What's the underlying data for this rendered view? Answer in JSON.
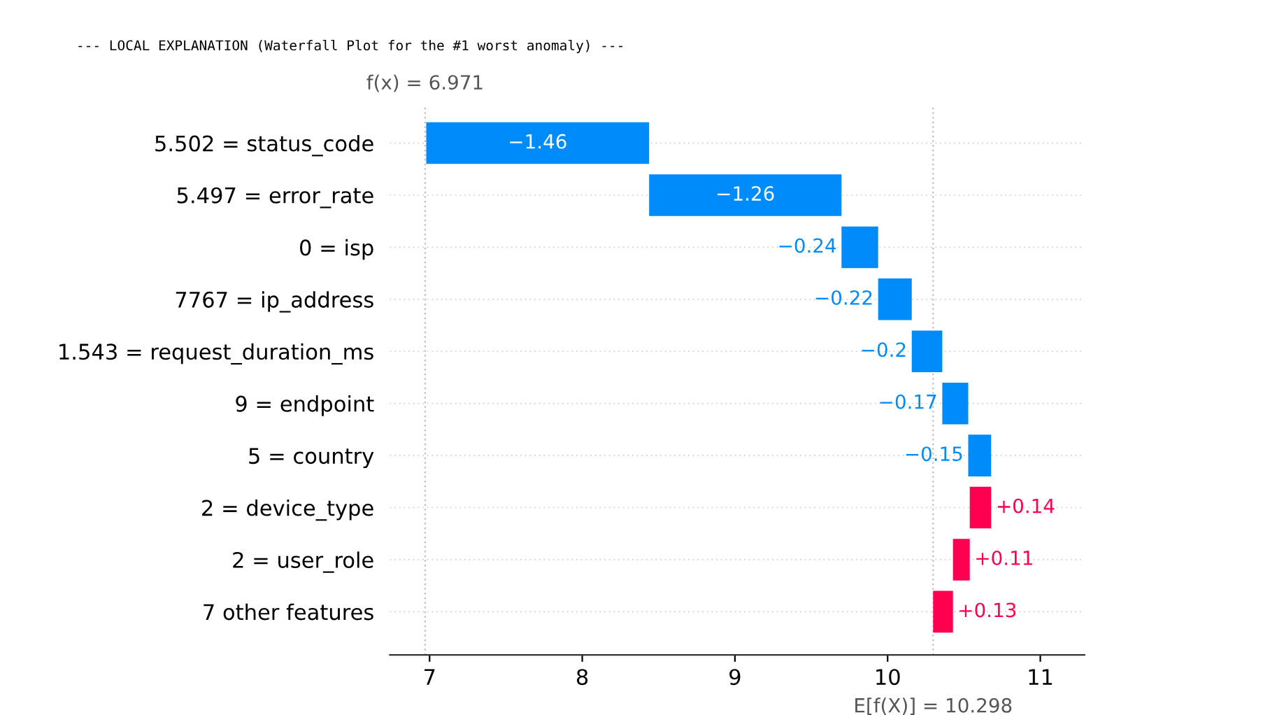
{
  "chart_data": {
    "type": "bar",
    "orientation": "horizontal",
    "title": "--- LOCAL EXPLANATION (Waterfall Plot for the #1 worst anomaly) ---",
    "categories": [
      "5.502 = status_code",
      "5.497 = error_rate",
      "0 = isp",
      "7767 = ip_address",
      "1.543 = request_duration_ms",
      "9 = endpoint",
      "5 = country",
      "2 = device_type",
      "2 = user_role",
      "7 other features"
    ],
    "values": [
      -1.46,
      -1.26,
      -0.24,
      -0.22,
      -0.2,
      -0.17,
      -0.15,
      0.14,
      0.11,
      0.13
    ],
    "base": [
      8.438,
      9.698,
      9.938,
      10.158,
      10.358,
      10.528,
      10.678,
      10.538,
      10.428,
      10.298
    ],
    "colors": [
      "#008bfb",
      "#008bfb",
      "#008bfb",
      "#008bfb",
      "#008bfb",
      "#008bfb",
      "#008bfb",
      "#ff0051",
      "#ff0051",
      "#ff0051"
    ],
    "value_labels": [
      "−1.46",
      "−1.26",
      "−0.24",
      "−0.22",
      "−0.2",
      "−0.17",
      "−0.15",
      "+0.14",
      "+0.11",
      "+0.13"
    ],
    "xlim": [
      6.74,
      11.29
    ],
    "xticks": [
      7,
      8,
      9,
      10,
      11
    ],
    "grid": "y",
    "ref_lines": [
      {
        "axis": "x",
        "value": 6.971,
        "label": "f(x) = 6.971"
      },
      {
        "axis": "x",
        "value": 10.298,
        "label": "E[f(X)] = 10.298"
      }
    ]
  }
}
